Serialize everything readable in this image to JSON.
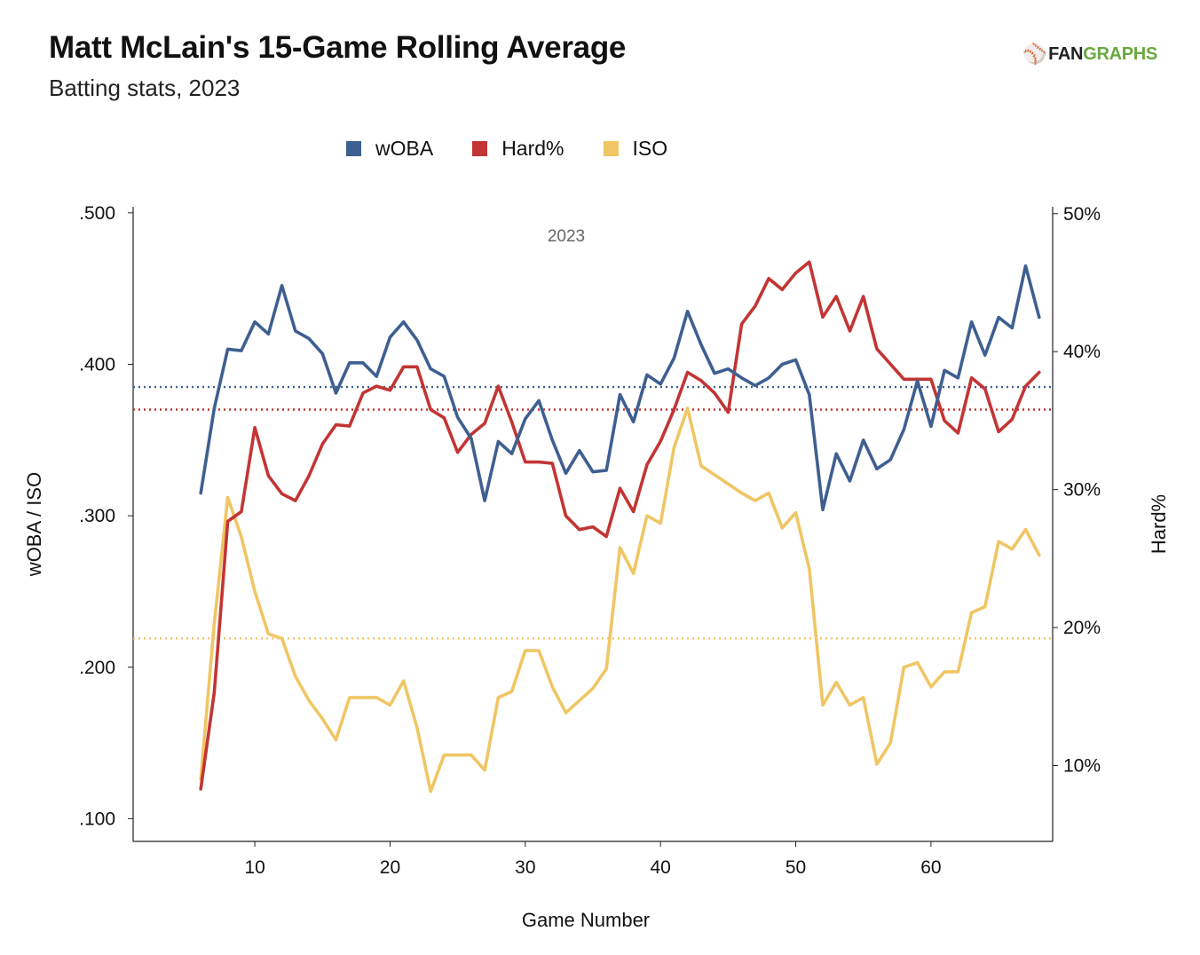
{
  "header": {
    "title": "Matt McLain's 15-Game Rolling Average",
    "subtitle": "Batting stats, 2023"
  },
  "logo": {
    "mark": "⚾",
    "text_fan": "FAN",
    "text_graphs": "GRAPHS"
  },
  "legend": [
    {
      "label": "wOBA",
      "color": "#3e5f91"
    },
    {
      "label": "Hard%",
      "color": "#c23534"
    },
    {
      "label": "ISO",
      "color": "#f0c664"
    }
  ],
  "chart_data": {
    "type": "line",
    "title": "Matt McLain's 15-Game Rolling Average",
    "subtitle": "Batting stats, 2023",
    "annotation": "2023",
    "xlabel": "Game Number",
    "ylabel_left": "wOBA / ISO",
    "ylabel_right": "Hard%",
    "xlim": [
      1,
      69
    ],
    "ylim_left": [
      0.085,
      0.504
    ],
    "ylim_right": [
      0.045,
      0.505
    ],
    "x_ticks": [
      10,
      20,
      30,
      40,
      50,
      60
    ],
    "y_left_ticks": [
      ".100",
      ".200",
      ".300",
      ".400",
      ".500"
    ],
    "y_left_tick_values": [
      0.1,
      0.2,
      0.3,
      0.4,
      0.5
    ],
    "y_right_ticks": [
      "10%",
      "20%",
      "30%",
      "40%",
      "50%"
    ],
    "y_right_tick_values": [
      0.1,
      0.2,
      0.3,
      0.4,
      0.5
    ],
    "x": [
      6,
      7,
      8,
      9,
      10,
      11,
      12,
      13,
      14,
      15,
      16,
      17,
      18,
      19,
      20,
      21,
      22,
      23,
      24,
      25,
      26,
      27,
      28,
      29,
      30,
      31,
      32,
      33,
      34,
      35,
      36,
      37,
      38,
      39,
      40,
      41,
      42,
      43,
      44,
      45,
      46,
      47,
      48,
      49,
      50,
      51,
      52,
      53,
      54,
      55,
      56,
      57,
      58,
      59,
      60,
      61,
      62,
      63,
      64,
      65,
      66,
      67,
      68
    ],
    "series": [
      {
        "name": "wOBA",
        "axis": "left",
        "color": "#3e5f91",
        "average": 0.385,
        "values": [
          0.315,
          0.371,
          0.41,
          0.409,
          0.428,
          0.42,
          0.452,
          0.422,
          0.417,
          0.407,
          0.381,
          0.401,
          0.401,
          0.392,
          0.418,
          0.428,
          0.416,
          0.397,
          0.392,
          0.365,
          0.351,
          0.31,
          0.349,
          0.341,
          0.364,
          0.376,
          0.35,
          0.328,
          0.343,
          0.329,
          0.33,
          0.38,
          0.362,
          0.393,
          0.387,
          0.404,
          0.435,
          0.413,
          0.394,
          0.397,
          0.391,
          0.386,
          0.391,
          0.4,
          0.403,
          0.38,
          0.304,
          0.341,
          0.323,
          0.35,
          0.331,
          0.337,
          0.357,
          0.389,
          0.359,
          0.396,
          0.391,
          0.428,
          0.406,
          0.431,
          0.424,
          0.465,
          0.431
        ]
      },
      {
        "name": "Hard%",
        "axis": "right",
        "color": "#c23534",
        "average": 0.358,
        "values": [
          0.083,
          0.153,
          0.277,
          0.284,
          0.345,
          0.31,
          0.297,
          0.292,
          0.31,
          0.333,
          0.347,
          0.346,
          0.37,
          0.375,
          0.372,
          0.389,
          0.389,
          0.358,
          0.352,
          0.327,
          0.34,
          0.348,
          0.375,
          0.349,
          0.32,
          0.32,
          0.319,
          0.281,
          0.271,
          0.273,
          0.266,
          0.301,
          0.284,
          0.318,
          0.335,
          0.358,
          0.385,
          0.379,
          0.37,
          0.356,
          0.42,
          0.433,
          0.453,
          0.445,
          0.457,
          0.465,
          0.425,
          0.44,
          0.415,
          0.44,
          0.402,
          0.391,
          0.38,
          0.38,
          0.38,
          0.35,
          0.341,
          0.381,
          0.373,
          0.342,
          0.351,
          0.375,
          0.385
        ]
      },
      {
        "name": "ISO",
        "axis": "left",
        "color": "#f0c664",
        "average": 0.219,
        "values": [
          0.126,
          0.229,
          0.312,
          0.286,
          0.25,
          0.222,
          0.219,
          0.194,
          0.178,
          0.166,
          0.152,
          0.18,
          0.18,
          0.18,
          0.175,
          0.191,
          0.16,
          0.118,
          0.142,
          0.142,
          0.142,
          0.132,
          0.18,
          0.184,
          0.211,
          0.211,
          0.187,
          0.17,
          0.178,
          0.186,
          0.199,
          0.279,
          0.262,
          0.3,
          0.295,
          0.345,
          0.371,
          0.333,
          0.327,
          0.321,
          0.315,
          0.31,
          0.315,
          0.292,
          0.302,
          0.265,
          0.175,
          0.19,
          0.175,
          0.18,
          0.136,
          0.15,
          0.2,
          0.203,
          0.187,
          0.197,
          0.197,
          0.236,
          0.24,
          0.283,
          0.278,
          0.291,
          0.274
        ]
      }
    ],
    "grid": false,
    "legend_position": "top-center"
  }
}
